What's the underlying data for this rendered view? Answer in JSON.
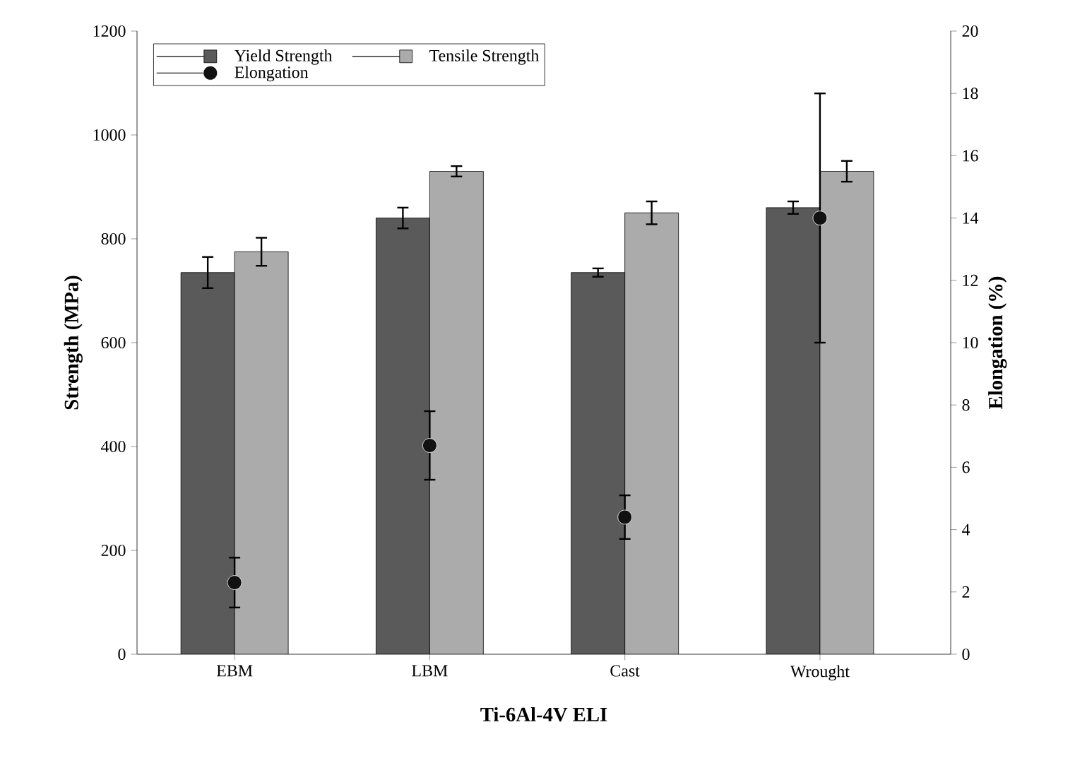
{
  "chart_data": {
    "type": "bar",
    "xlabel": "Ti-6Al-4V ELI",
    "ylabel": "Strength (MPa)",
    "y2label": "Elongation (%)",
    "categories": [
      "EBM",
      "LBM",
      "Cast",
      "Wrought"
    ],
    "series": [
      {
        "name": "Yield Strength",
        "color": "#5a5a5a",
        "values": [
          735,
          840,
          735,
          860
        ],
        "errors": [
          30,
          20,
          8,
          12
        ]
      },
      {
        "name": "Tensile Strength",
        "color": "#ababab",
        "values": [
          775,
          930,
          850,
          930
        ],
        "errors": [
          27,
          10,
          22,
          20
        ]
      },
      {
        "name": "Elongation",
        "type": "scatter",
        "axis": "y2",
        "color": "#111111",
        "marker": "circle",
        "values": [
          2.3,
          6.7,
          4.4,
          14.0
        ],
        "errors": [
          0.8,
          1.1,
          0.7,
          4.0
        ]
      }
    ],
    "ylim": [
      0,
      1200
    ],
    "yticks": [
      0,
      200,
      400,
      600,
      800,
      1000,
      1200
    ],
    "y2lim": [
      0,
      20
    ],
    "y2ticks": [
      0,
      2,
      4,
      6,
      8,
      10,
      12,
      14,
      16,
      18,
      20
    ],
    "legend": "top left",
    "grid": false
  }
}
